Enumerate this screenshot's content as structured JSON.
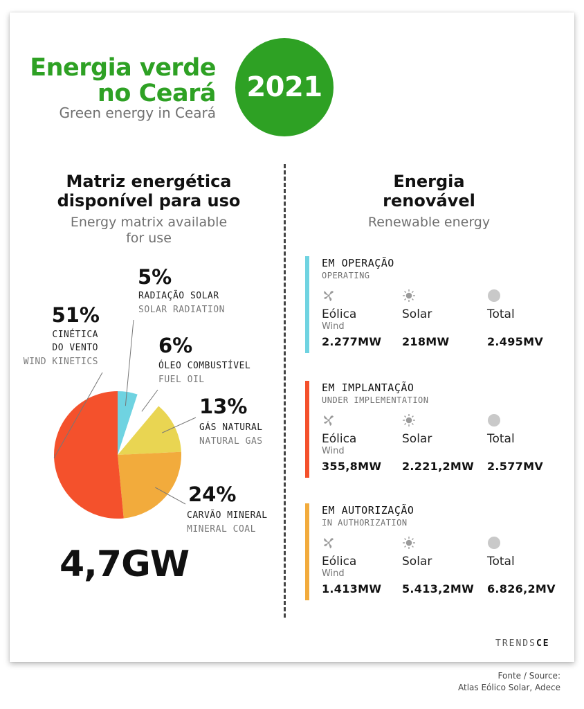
{
  "header": {
    "title_line1": "Energia verde",
    "title_line2": "no Ceará",
    "subtitle": "Green energy in Ceará",
    "year": "2021",
    "accent_color": "#2ea124"
  },
  "left": {
    "title_line1": "Matriz energética",
    "title_line2": "disponível para uso",
    "subtitle_line1": "Energy matrix available",
    "subtitle_line2": "for use",
    "total": "4,7GW"
  },
  "chart_data": {
    "type": "pie",
    "unit": "%",
    "slices": [
      {
        "label_pt_1": "CINÉTICA",
        "label_pt_2": "DO VENTO",
        "label_en": "WIND KINETICS",
        "value": 51,
        "pct_text": "51%",
        "color": "#f4512c"
      },
      {
        "label_pt": "RADIAÇÃO SOLAR",
        "label_en": "SOLAR RADIATION",
        "value": 5,
        "pct_text": "5%",
        "color": "#6fd3e1"
      },
      {
        "label_pt": "ÓLEO COMBUSTÍVEL",
        "label_en": "FUEL OIL",
        "value": 6,
        "pct_text": "6%",
        "color": "#ffffff"
      },
      {
        "label_pt": "GÁS NATURAL",
        "label_en": "NATURAL GAS",
        "value": 13,
        "pct_text": "13%",
        "color": "#e9d552"
      },
      {
        "label_pt": "CARVÃO MINERAL",
        "label_en": "MINERAL COAL",
        "value": 24,
        "pct_text": "24%",
        "color": "#f2ab3c"
      }
    ]
  },
  "right": {
    "title_line1": "Energia",
    "title_line2": "renovável",
    "subtitle": "Renewable energy",
    "columns": {
      "wind": "Eólica",
      "wind_en": "Wind",
      "solar": "Solar",
      "total": "Total"
    },
    "groups": [
      {
        "title": "EM OPERAÇÃO",
        "subtitle": "OPERATING",
        "color": "#6fd3e1",
        "wind": "2.277MW",
        "solar": "218MW",
        "total": "2.495MV"
      },
      {
        "title": "EM IMPLANTAÇÃO",
        "subtitle": "UNDER IMPLEMENTATION",
        "color": "#f4512c",
        "wind": "355,8MW",
        "solar": "2.221,2MW",
        "total": "2.577MV"
      },
      {
        "title": "EM AUTORIZAÇÃO",
        "subtitle": "IN AUTHORIZATION",
        "color": "#f2ab3c",
        "wind": "1.413MW",
        "solar": "5.413,2MW",
        "total": "6.826,2MV"
      }
    ]
  },
  "footer": {
    "brand_a": "TRENDS",
    "brand_b": "CE",
    "source_line1": "Fonte / Source:",
    "source_line2": "Atlas Eólico Solar, Adece"
  },
  "icons": [
    "wind-turbine-icon",
    "sun-icon",
    "circle-icon"
  ]
}
